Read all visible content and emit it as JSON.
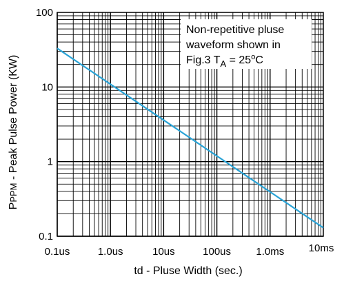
{
  "chart_data": {
    "type": "line",
    "x_scale": "log",
    "y_scale": "log",
    "xlim": [
      "0.1us",
      "10ms"
    ],
    "xlim_seconds": [
      1e-07,
      0.01
    ],
    "ylim": [
      0.1,
      100
    ],
    "grid": true,
    "x_ticks": [
      {
        "label": "0.1us",
        "value": 1e-07
      },
      {
        "label": "1.0us",
        "value": 1e-06
      },
      {
        "label": "10us",
        "value": 1e-05
      },
      {
        "label": "100us",
        "value": 0.0001
      },
      {
        "label": "1.0ms",
        "value": 0.001
      },
      {
        "label": "10ms",
        "value": 0.01
      }
    ],
    "y_ticks": [
      {
        "label": "0.1",
        "value": 0.1
      },
      {
        "label": "1",
        "value": 1
      },
      {
        "label": "10",
        "value": 10
      },
      {
        "label": "100",
        "value": 100
      }
    ],
    "xlabel": "td - Pluse Width (sec.)",
    "ylabel": {
      "prefix": "P",
      "sub": "PPM",
      "rest": " - Peak Pulse Power (KW)"
    },
    "series": [
      {
        "color": "#29a3d6",
        "points": [
          {
            "x": 1e-07,
            "y": 33
          },
          {
            "x": 0.01,
            "y": 0.13
          }
        ]
      }
    ],
    "annotation": {
      "lines": [
        "Non-repetitive pluse",
        "waveform shown in"
      ],
      "line3": {
        "pre": "Fig.3 T",
        "sub": "A",
        "post": " = 25",
        "deg": "o",
        "end": "C"
      }
    }
  }
}
